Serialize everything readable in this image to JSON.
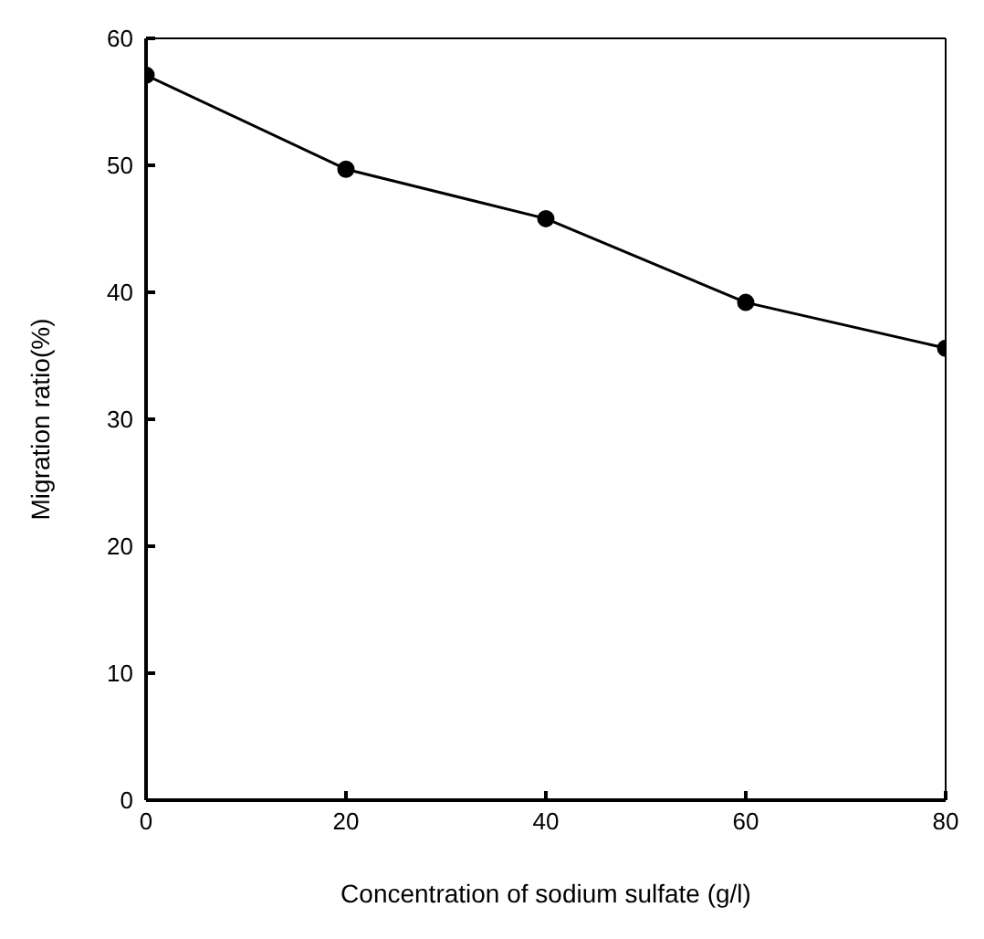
{
  "chart_data": {
    "type": "line",
    "xlabel": "Concentration of sodium sulfate (g/l)",
    "ylabel": "Migration ratio(%)",
    "x": [
      0,
      20,
      40,
      60,
      80
    ],
    "series": [
      {
        "color": "#000000",
        "values": [
          57.1,
          49.7,
          45.8,
          39.2,
          35.6
        ]
      }
    ],
    "xlim": [
      0,
      80
    ],
    "xticks": [
      0,
      20,
      40,
      60,
      80
    ],
    "ylim": [
      0,
      60
    ],
    "yticks": [
      0,
      10,
      20,
      30,
      40,
      50,
      60
    ],
    "grid": false,
    "legend": false,
    "marker": "circle",
    "line_style": "solid"
  }
}
